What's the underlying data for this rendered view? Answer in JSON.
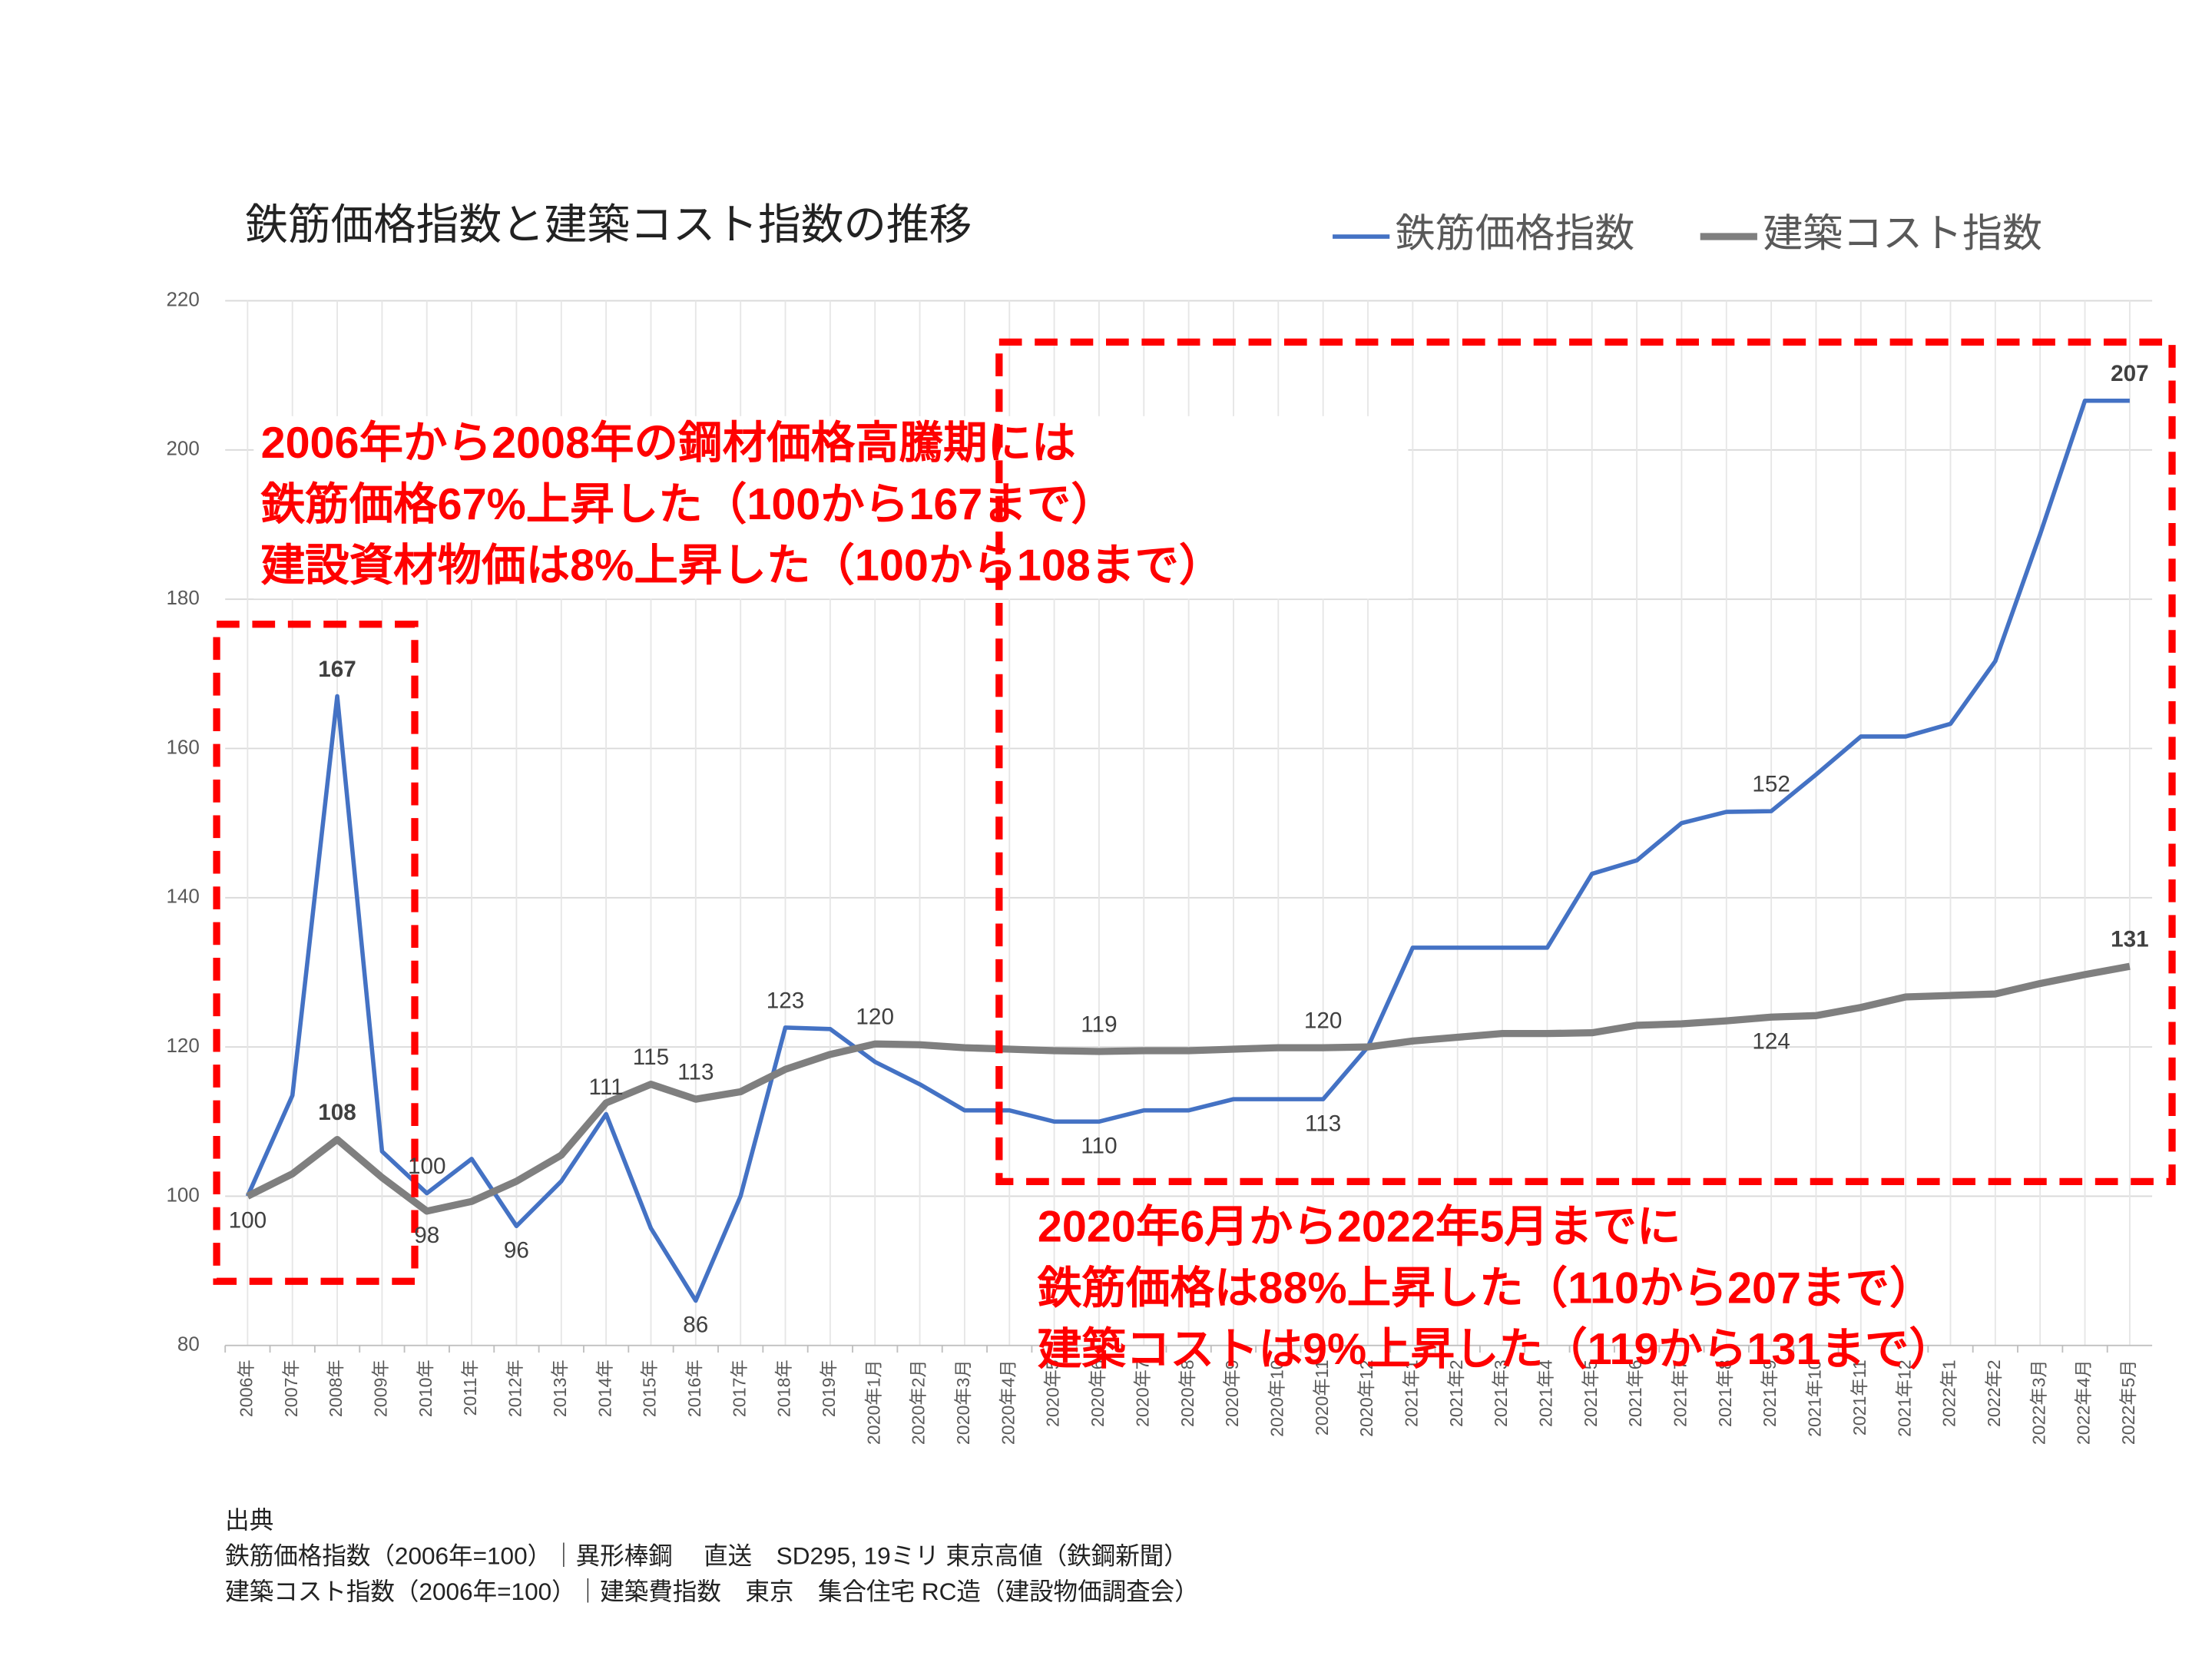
{
  "chart_data": {
    "type": "line",
    "title": "鉄筋価格指数と建築コスト指数の推移",
    "categories": [
      "2006年",
      "2007年",
      "2008年",
      "2009年",
      "2010年",
      "2011年",
      "2012年",
      "2013年",
      "2014年",
      "2015年",
      "2016年",
      "2017年",
      "2018年",
      "2019年",
      "2020年1月",
      "2020年2月",
      "2020年3月",
      "2020年4月",
      "2020年5",
      "2020年6",
      "2020年7",
      "2020年8",
      "2020年9",
      "2020年10",
      "2020年11",
      "2020年12",
      "2021年1",
      "2021年2",
      "2021年3",
      "2021年4",
      "2021年5",
      "2021年6",
      "2021年7",
      "2021年8",
      "2021年9",
      "2021年10",
      "2021年11",
      "2021年12",
      "2022年1",
      "2022年2",
      "2022年3月",
      "2022年4月",
      "2022年5月"
    ],
    "series": [
      {
        "name": "鉄筋価格指数",
        "color": "#4472c4",
        "values": [
          100,
          113.5,
          167,
          106,
          100.4,
          105,
          96,
          102,
          111,
          95.7,
          86,
          100,
          122.6,
          122.4,
          118,
          115,
          111.5,
          111.5,
          110,
          110,
          111.5,
          111.5,
          113,
          113,
          113,
          120,
          133.3,
          133.3,
          133.3,
          133.3,
          143.2,
          145,
          150,
          151.5,
          151.6,
          156.5,
          161.6,
          161.6,
          163.3,
          171.7,
          188.7,
          206.6,
          206.6
        ],
        "value_labels": [
          "100",
          null,
          "167",
          null,
          "100",
          null,
          "96",
          null,
          "111",
          null,
          "86",
          null,
          "123",
          null,
          null,
          null,
          null,
          null,
          null,
          "110",
          null,
          null,
          null,
          null,
          "113",
          null,
          null,
          null,
          null,
          null,
          null,
          null,
          null,
          null,
          "152",
          null,
          null,
          null,
          null,
          null,
          null,
          null,
          "207"
        ]
      },
      {
        "name": "建築コスト指数",
        "color": "#7f7f7f",
        "values": [
          100,
          103,
          107.6,
          102.5,
          98,
          99.3,
          102,
          105.5,
          112.5,
          115,
          113,
          114,
          117,
          119,
          120.4,
          120.3,
          119.9,
          119.7,
          119.5,
          119.4,
          119.5,
          119.5,
          119.7,
          119.9,
          119.9,
          120,
          120.8,
          121.3,
          121.8,
          121.8,
          121.9,
          122.9,
          123.1,
          123.5,
          124,
          124.2,
          125.3,
          126.7,
          126.9,
          127.1,
          128.5,
          129.7,
          130.8
        ],
        "value_labels": [
          null,
          null,
          "108",
          null,
          "98",
          null,
          null,
          null,
          null,
          "115",
          "113",
          null,
          null,
          null,
          "120",
          null,
          null,
          null,
          null,
          "119",
          null,
          null,
          null,
          null,
          "120",
          null,
          null,
          null,
          null,
          null,
          null,
          null,
          null,
          null,
          "124",
          null,
          null,
          null,
          null,
          null,
          null,
          null,
          "131"
        ]
      }
    ],
    "ylim": [
      80,
      220
    ],
    "yticks": [
      80,
      100,
      120,
      140,
      160,
      180,
      200,
      220
    ],
    "grid": true,
    "legend": "top-right",
    "annotations": [
      [
        "2006年から2008年の鋼材価格高騰期には",
        "鉄筋価格67%上昇した（100から167まで）",
        "建設資材物価は8%上昇した（100から108まで）"
      ],
      [
        "2020年6月から2022年5月までに",
        "鉄筋価格は88%上昇した（110から207まで）",
        "建築コストは9%上昇した（119から131まで）"
      ]
    ],
    "source": [
      "出典",
      "鉄筋価格指数（2006年=100）｜異形棒鋼　 直送　SD295, 19ミリ 東京高値（鉄鋼新聞）",
      "建築コスト指数（2006年=100）｜建築費指数　東京　集合住宅 RC造（建設物価調査会）"
    ]
  }
}
